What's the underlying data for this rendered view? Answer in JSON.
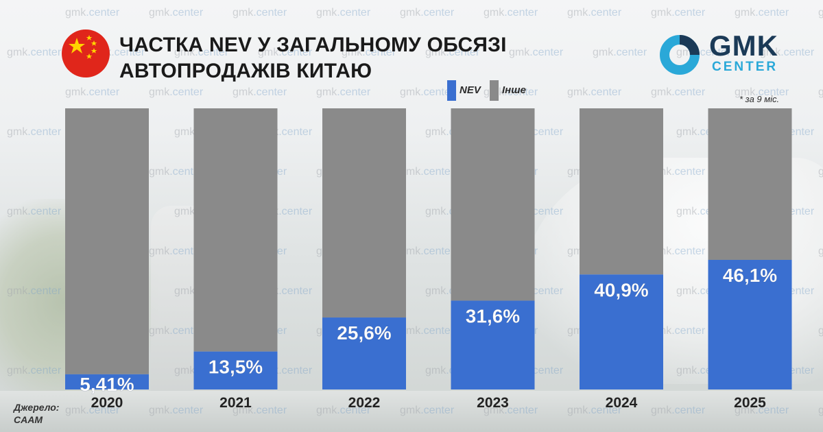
{
  "title": {
    "line1": "ЧАСТКА NEV У ЗАГАЛЬНОМУ ОБСЯЗІ",
    "line2": "АВТОПРОДАЖІВ КИТАЮ"
  },
  "logo": {
    "line1": "GMK",
    "line2": "CENTER"
  },
  "watermark": {
    "text_a": "gmk",
    "text_b": ".center"
  },
  "legend": [
    {
      "label": "NEV",
      "color": "#3a6fd0"
    },
    {
      "label": "Інше",
      "color": "#8a8a8a"
    }
  ],
  "note": "* за 9 міс.",
  "source": {
    "line1": "Джерело:",
    "line2": "CAAM"
  },
  "colors": {
    "nev": "#3a6fd0",
    "other": "#8a8a8a",
    "accent": "#2aa8d8",
    "brand": "#1b3a57",
    "flag": "#e0261b",
    "star": "#ffd400"
  },
  "chart_data": {
    "type": "bar",
    "stacked": true,
    "categories": [
      "2020",
      "2021",
      "2022",
      "2023",
      "2024",
      "2025"
    ],
    "series": [
      {
        "name": "NEV",
        "values": [
          5.41,
          13.5,
          25.6,
          31.6,
          40.9,
          46.1
        ]
      },
      {
        "name": "Інше",
        "values": [
          94.59,
          86.5,
          74.4,
          68.4,
          59.1,
          53.9
        ]
      }
    ],
    "data_labels": [
      "5,41%",
      "13,5%",
      "25,6%",
      "31,6%",
      "40,9%",
      "46,1%"
    ],
    "ylim": [
      0,
      100
    ],
    "legend_position": "top-right",
    "grid": false
  }
}
